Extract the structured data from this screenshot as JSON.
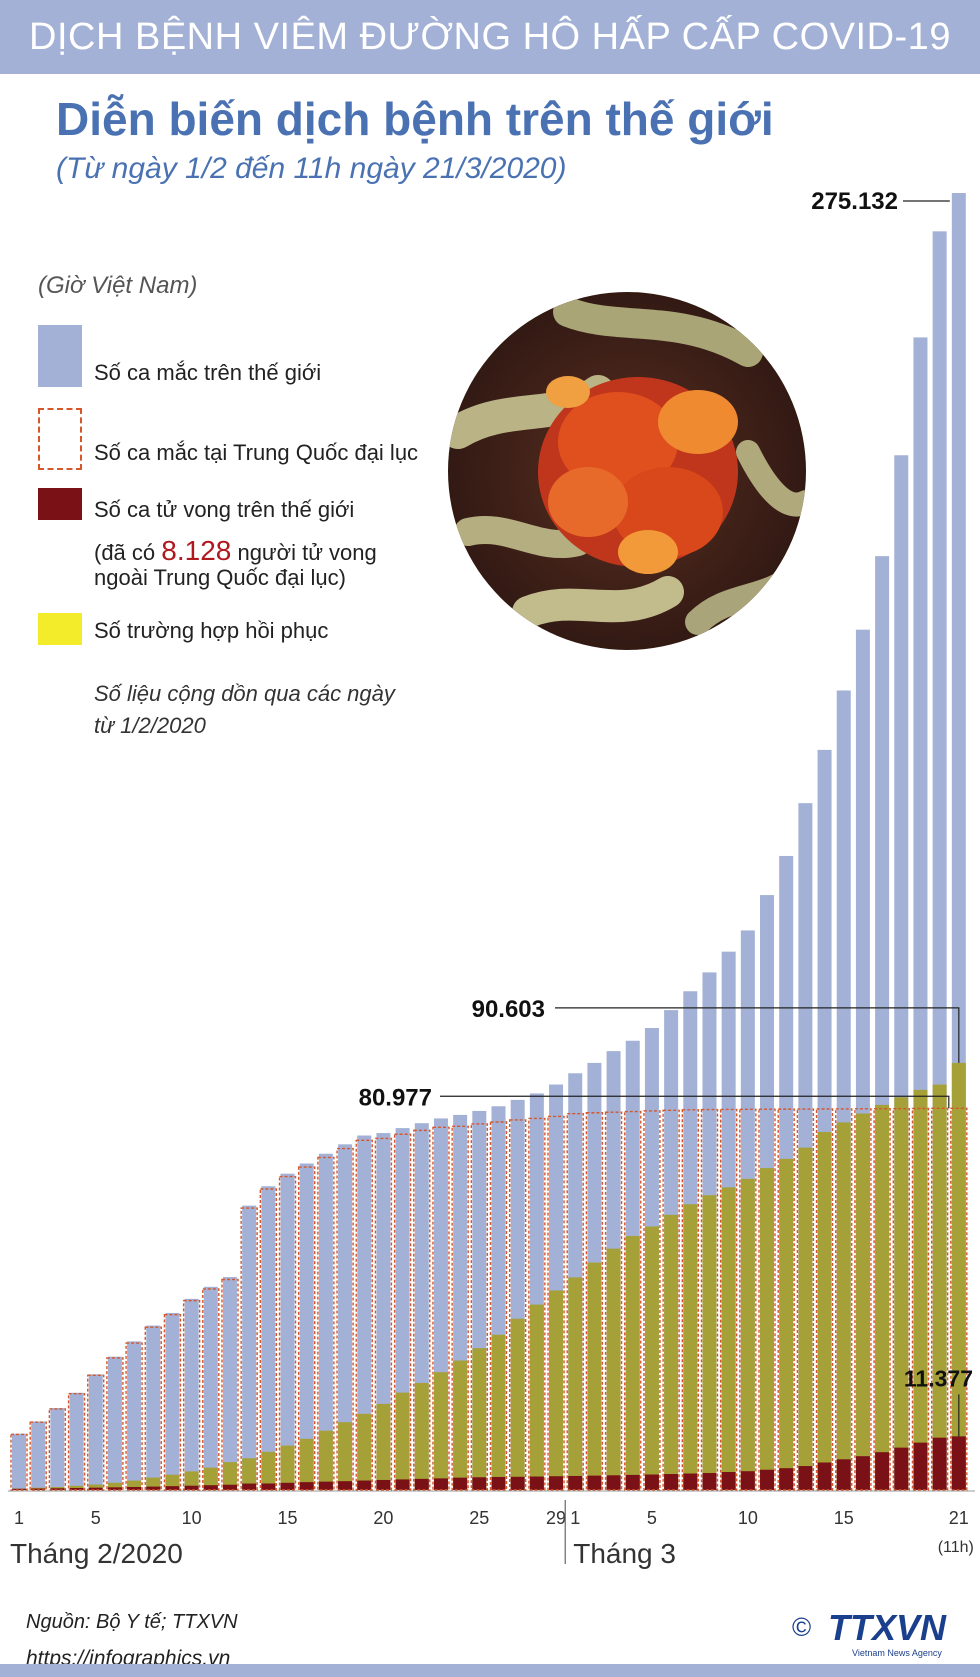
{
  "header": {
    "banner": "DỊCH BỆNH VIÊM ĐƯỜNG HÔ HẤP CẤP COVID-19",
    "title": "Diễn biến dịch bệnh trên thế giới",
    "subtitle": "(Từ ngày 1/2 đến 11h ngày 21/3/2020)"
  },
  "legend": {
    "timezone_note": "(Giờ Việt Nam)",
    "world_cases": "Số ca mắc trên thế giới",
    "china_cases": "Số ca mắc tại Trung Quốc đại lục",
    "world_deaths": "Số ca tử vong trên thế giới",
    "deaths_note_prefix": "(đã có ",
    "deaths_outside_china": "8.128",
    "deaths_note_suffix": " người tử vong",
    "deaths_note_line2": "ngoài Trung Quốc đại lục)",
    "recovered": "Số trường hợp hồi phục",
    "cumulative_note_line1": "Số liệu cộng dồn qua các ngày",
    "cumulative_note_line2": "từ 1/2/2020"
  },
  "colors": {
    "world": "#a3b1d6",
    "china_border": "#d5572b",
    "deaths": "#7a1116",
    "recovered": "#a5a037",
    "recovered_swatch": "#f3ec2a",
    "accent": "#4a72b3"
  },
  "chart_data": {
    "type": "bar",
    "title": "Diễn biến dịch bệnh trên thế giới",
    "xlabel": "",
    "ylabel": "",
    "ylim": [
      0,
      275132
    ],
    "months": [
      "Tháng 2/2020",
      "Tháng 3"
    ],
    "x_ticks": [
      "1",
      "5",
      "10",
      "15",
      "20",
      "25",
      "29",
      "1",
      "5",
      "10",
      "15",
      "21"
    ],
    "x_tick_days": [
      1,
      5,
      10,
      15,
      20,
      25,
      29,
      30,
      34,
      39,
      44,
      50
    ],
    "last_day_note": "(11h)",
    "days": [
      1,
      2,
      3,
      4,
      5,
      6,
      7,
      8,
      9,
      10,
      11,
      12,
      13,
      14,
      15,
      16,
      17,
      18,
      19,
      20,
      21,
      22,
      23,
      24,
      25,
      26,
      27,
      28,
      29,
      30,
      31,
      32,
      33,
      34,
      35,
      36,
      37,
      38,
      39,
      40,
      41,
      42,
      43,
      44,
      45,
      46,
      47,
      48,
      49,
      50
    ],
    "series": [
      {
        "name": "Số ca mắc trên thế giới",
        "values": [
          11950,
          14550,
          17390,
          20630,
          24550,
          28280,
          31530,
          34880,
          37560,
          40550,
          43100,
          45170,
          60330,
          64440,
          67100,
          69260,
          71330,
          73330,
          75200,
          75720,
          76770,
          77810,
          78820,
          79570,
          80410,
          81400,
          82760,
          84120,
          86010,
          88400,
          90600,
          93100,
          95300,
          98000,
          101800,
          105800,
          109800,
          114200,
          118700,
          126200,
          134500,
          145700,
          157000,
          169600,
          182500,
          198100,
          219500,
          244500,
          267000,
          275132
        ]
      },
      {
        "name": "Số ca mắc tại Trung Quốc đại lục",
        "values": [
          11791,
          14380,
          17205,
          20438,
          24324,
          28018,
          31161,
          34546,
          37198,
          40171,
          42638,
          44653,
          59804,
          63851,
          66492,
          68500,
          70548,
          72436,
          74185,
          74576,
          75465,
          76288,
          76936,
          77150,
          77658,
          78064,
          78497,
          78824,
          79251,
          79824,
          80026,
          80151,
          80270,
          80409,
          80552,
          80651,
          80695,
          80735,
          80754,
          80778,
          80793,
          80813,
          80824,
          80844,
          80860,
          80881,
          80894,
          80928,
          80967,
          80977
        ]
      },
      {
        "name": "Số ca tử vong trên thế giới",
        "values": [
          259,
          304,
          362,
          427,
          493,
          565,
          638,
          724,
          813,
          910,
          1018,
          1115,
          1369,
          1383,
          1526,
          1669,
          1775,
          1873,
          2009,
          2126,
          2247,
          2360,
          2462,
          2618,
          2699,
          2763,
          2800,
          2858,
          2923,
          2977,
          3050,
          3117,
          3202,
          3286,
          3387,
          3494,
          3599,
          3815,
          3990,
          4298,
          4627,
          5083,
          5833,
          6512,
          7174,
          8016,
          8987,
          10047,
          11100,
          11377
        ]
      },
      {
        "name": "Số trường hợp hồi phục",
        "values": [
          295,
          475,
          632,
          890,
          1153,
          1540,
          1999,
          2632,
          3244,
          3946,
          4740,
          5911,
          6723,
          8096,
          9419,
          10844,
          12583,
          14376,
          16155,
          18264,
          20659,
          22699,
          24990,
          27465,
          30086,
          32930,
          36329,
          39337,
          42328,
          45110,
          48245,
          51201,
          53888,
          55898,
          58369,
          60615,
          62528,
          64196,
          66003,
          68286,
          70251,
          72623,
          75948,
          77976,
          79862,
          81692,
          83305,
          84881,
          86000,
          90603
        ]
      }
    ],
    "annotations": [
      {
        "label": "275.132",
        "series": "Số ca mắc trên thế giới",
        "day": 50
      },
      {
        "label": "90.603",
        "series": "Số trường hợp hồi phục",
        "day": 50
      },
      {
        "label": "80.977",
        "series": "Số ca mắc tại Trung Quốc đại lục",
        "day": 50
      },
      {
        "label": "11.377",
        "series": "Số ca tử vong trên thế giới",
        "day": 50
      }
    ]
  },
  "footer": {
    "source": "Nguồn: Bộ Y tế; TTXVN",
    "website": "https://infographics.vn",
    "logo_text": "TTXVN",
    "logo_sub": "Vietnam News Agency",
    "copyright": "©"
  }
}
